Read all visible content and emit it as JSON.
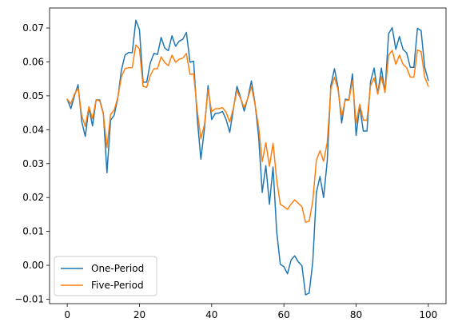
{
  "chart_data": {
    "type": "line",
    "title": "",
    "xlabel": "",
    "ylabel": "",
    "xlim": [
      -4.9,
      104.9
    ],
    "ylim": [
      -0.0113,
      0.0759
    ],
    "xticks": [
      0,
      20,
      40,
      60,
      80,
      100
    ],
    "yticks": [
      -0.01,
      0.0,
      0.01,
      0.02,
      0.03,
      0.04,
      0.05,
      0.06,
      0.07
    ],
    "ytick_labels": [
      "−0.01",
      "0.00",
      "0.01",
      "0.02",
      "0.03",
      "0.04",
      "0.05",
      "0.06",
      "0.07"
    ],
    "grid": false,
    "legend_position": "lower-left",
    "series": [
      {
        "name": "One-Period",
        "color": "#1f77b4",
        "values": [
          0.049,
          0.0462,
          0.05,
          0.0533,
          0.0425,
          0.038,
          0.0465,
          0.0411,
          0.0488,
          0.0488,
          0.0448,
          0.0273,
          0.0428,
          0.0443,
          0.0493,
          0.0576,
          0.062,
          0.0628,
          0.0627,
          0.0723,
          0.0695,
          0.054,
          0.054,
          0.0597,
          0.0625,
          0.0622,
          0.0672,
          0.0641,
          0.0633,
          0.0677,
          0.0646,
          0.0661,
          0.0667,
          0.0687,
          0.0599,
          0.0602,
          0.0434,
          0.0313,
          0.0403,
          0.053,
          0.043,
          0.0448,
          0.0449,
          0.0454,
          0.043,
          0.0392,
          0.046,
          0.0528,
          0.0495,
          0.0455,
          0.0493,
          0.0544,
          0.0478,
          0.038,
          0.0215,
          0.0294,
          0.018,
          0.029,
          0.01,
          0.0003,
          -0.0004,
          -0.0025,
          0.0016,
          0.0028,
          0.001,
          -0.0001,
          -0.0087,
          -0.0082,
          0.001,
          0.0215,
          0.0262,
          0.02,
          0.0307,
          0.053,
          0.058,
          0.0525,
          0.042,
          0.049,
          0.0488,
          0.0565,
          0.0383,
          0.0469,
          0.0396,
          0.0396,
          0.0542,
          0.0582,
          0.0505,
          0.0582,
          0.051,
          0.0683,
          0.0701,
          0.0637,
          0.0675,
          0.0637,
          0.0627,
          0.0584,
          0.0584,
          0.0699,
          0.0692,
          0.0584,
          0.0545
        ]
      },
      {
        "name": "Five-Period",
        "color": "#ff7f0e",
        "values": [
          0.049,
          0.0476,
          0.0505,
          0.0522,
          0.0442,
          0.041,
          0.0468,
          0.0432,
          0.0488,
          0.0485,
          0.0445,
          0.0347,
          0.0445,
          0.0458,
          0.0495,
          0.0556,
          0.058,
          0.0583,
          0.0583,
          0.065,
          0.0638,
          0.0528,
          0.0525,
          0.056,
          0.058,
          0.058,
          0.0615,
          0.0598,
          0.0589,
          0.062,
          0.0599,
          0.0608,
          0.0611,
          0.0625,
          0.0563,
          0.0565,
          0.0458,
          0.0373,
          0.0415,
          0.0517,
          0.0453,
          0.0462,
          0.0462,
          0.0465,
          0.0451,
          0.0423,
          0.0463,
          0.0515,
          0.0492,
          0.0465,
          0.0492,
          0.0527,
          0.0475,
          0.0408,
          0.0306,
          0.0362,
          0.0292,
          0.036,
          0.0253,
          0.018,
          0.0173,
          0.0165,
          0.0181,
          0.0193,
          0.0183,
          0.0173,
          0.0127,
          0.013,
          0.019,
          0.031,
          0.0338,
          0.0307,
          0.0362,
          0.052,
          0.0555,
          0.0518,
          0.044,
          0.0487,
          0.0487,
          0.0545,
          0.0418,
          0.0475,
          0.0428,
          0.0428,
          0.053,
          0.0553,
          0.0505,
          0.0557,
          0.051,
          0.062,
          0.0634,
          0.0593,
          0.062,
          0.0593,
          0.0583,
          0.0555,
          0.0555,
          0.0635,
          0.063,
          0.0555,
          0.0528
        ]
      }
    ]
  }
}
